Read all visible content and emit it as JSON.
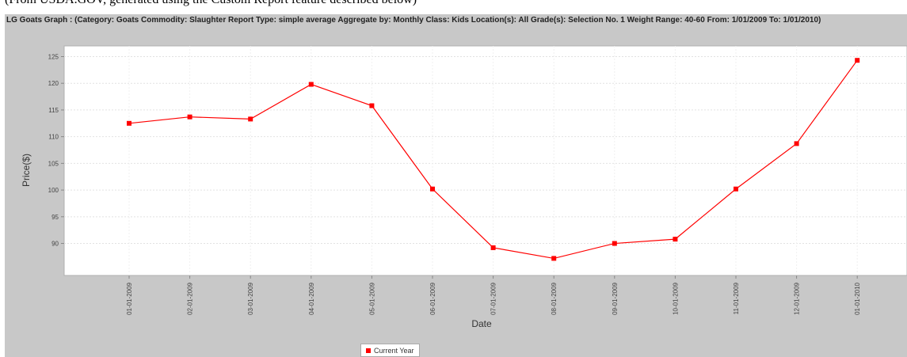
{
  "caption": "(From USDA.GOV, generated using the Custom Report feature described below)",
  "chart_data": {
    "type": "line",
    "title": "LG Goats Graph : (Category: Goats Commodity: Slaughter Report Type: simple average Aggregate by: Monthly Class: Kids Location(s): All Grade(s): Selection No. 1 Weight Range: 40-60 From: 1/01/2009 To: 1/01/2010)",
    "xlabel": "Date",
    "ylabel": "Price($)",
    "categories": [
      "01-01-2009",
      "02-01-2009",
      "03-01-2009",
      "04-01-2009",
      "05-01-2009",
      "06-01-2009",
      "07-01-2009",
      "08-01-2009",
      "09-01-2009",
      "10-01-2009",
      "11-01-2009",
      "12-01-2009",
      "01-01-2010"
    ],
    "series": [
      {
        "name": "Current Year",
        "color": "#ff0000",
        "values": [
          112.5,
          113.7,
          113.3,
          119.8,
          115.8,
          100.2,
          89.2,
          87.2,
          90.0,
          90.8,
          100.2,
          108.7,
          124.3
        ]
      }
    ],
    "ylim": [
      84,
      127
    ],
    "yticks": [
      90,
      95,
      100,
      105,
      110,
      115,
      120,
      125
    ],
    "grid": true,
    "legend": "bottom-center"
  }
}
